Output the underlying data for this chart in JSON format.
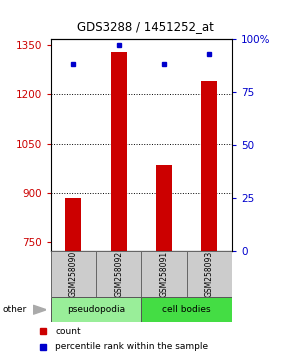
{
  "title": "GDS3288 / 1451252_at",
  "samples": [
    "GSM258090",
    "GSM258092",
    "GSM258091",
    "GSM258093"
  ],
  "count_values": [
    882,
    1330,
    985,
    1240
  ],
  "percentile_values": [
    88,
    97,
    88,
    93
  ],
  "ylim_left": [
    720,
    1370
  ],
  "ylim_right": [
    0,
    100
  ],
  "yticks_left": [
    750,
    900,
    1050,
    1200,
    1350
  ],
  "yticks_right": [
    0,
    25,
    50,
    75,
    100
  ],
  "ytick_labels_right": [
    "0",
    "25",
    "50",
    "75",
    "100%"
  ],
  "grid_lines": [
    900,
    1050,
    1200
  ],
  "bar_color": "#cc0000",
  "dot_color": "#0000cc",
  "left_tick_color": "#cc0000",
  "right_tick_color": "#0000cc",
  "bar_width": 0.35,
  "group_defs": [
    {
      "label": "pseudopodia",
      "start": 0,
      "end": 2,
      "color": "#99ee99"
    },
    {
      "label": "cell bodies",
      "start": 2,
      "end": 4,
      "color": "#44dd44"
    }
  ],
  "sample_box_color": "#cccccc",
  "other_label": "other",
  "legend_count_label": "count",
  "legend_pct_label": "percentile rank within the sample"
}
